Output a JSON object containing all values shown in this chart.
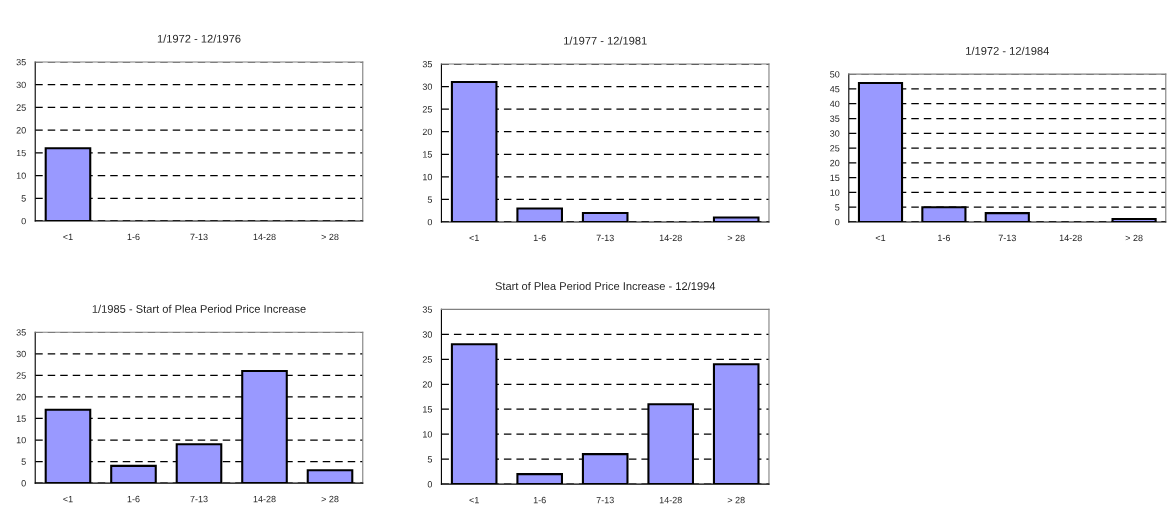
{
  "chart_data": [
    {
      "type": "bar",
      "title": "1/1972 - 12/1976",
      "categories": [
        "<1",
        "1-6",
        "7-13",
        "14-28",
        "> 28"
      ],
      "values": [
        16,
        0,
        0,
        0,
        0
      ],
      "color": "#9999ff",
      "ylim": [
        0,
        35
      ],
      "yticks": [
        0,
        5,
        10,
        15,
        20,
        25,
        30,
        35
      ],
      "grid": "y"
    },
    {
      "type": "bar",
      "title": "1/1977 - 12/1981",
      "categories": [
        "<1",
        "1-6",
        "7-13",
        "14-28",
        "> 28"
      ],
      "values": [
        31,
        3,
        2,
        0,
        1
      ],
      "color": "#9999ff",
      "ylim": [
        0,
        35
      ],
      "yticks": [
        0,
        5,
        10,
        15,
        20,
        25,
        30,
        35
      ],
      "grid": "y"
    },
    {
      "type": "bar",
      "title": "1/1972 - 12/1984",
      "categories": [
        "<1",
        "1-6",
        "7-13",
        "14-28",
        "> 28"
      ],
      "values": [
        47,
        5,
        3,
        0,
        1
      ],
      "color": "#9999ff",
      "ylim": [
        0,
        50
      ],
      "yticks": [
        0,
        5,
        10,
        15,
        20,
        25,
        30,
        35,
        40,
        45,
        50
      ],
      "grid": "y"
    },
    {
      "type": "bar",
      "title": "1/1985 - Start of Plea Period Price Increase",
      "categories": [
        "<1",
        "1-6",
        "7-13",
        "14-28",
        "> 28"
      ],
      "values": [
        17,
        4,
        9,
        26,
        3
      ],
      "color": "#9999ff",
      "ylim": [
        0,
        35
      ],
      "yticks": [
        0,
        5,
        10,
        15,
        20,
        25,
        30,
        35
      ],
      "grid": "y"
    },
    {
      "type": "bar",
      "title": "Start of Plea Period Price Increase - 12/1994",
      "categories": [
        "<1",
        "1-6",
        "7-13",
        "14-28",
        "> 28"
      ],
      "values": [
        28,
        2,
        6,
        16,
        24
      ],
      "color": "#9999ff",
      "ylim": [
        0,
        35
      ],
      "yticks": [
        0,
        5,
        10,
        15,
        20,
        25,
        30,
        35
      ],
      "grid": "y"
    }
  ]
}
